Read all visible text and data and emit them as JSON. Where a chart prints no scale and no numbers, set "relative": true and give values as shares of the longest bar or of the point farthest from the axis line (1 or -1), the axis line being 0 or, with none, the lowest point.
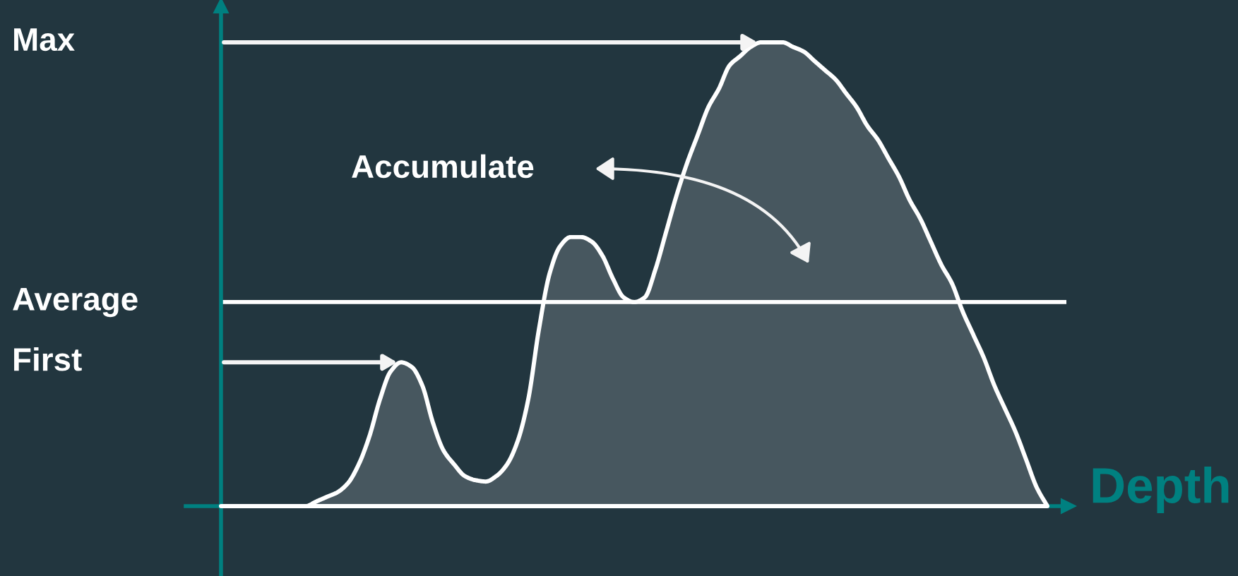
{
  "chart_data": {
    "type": "area",
    "relative": true,
    "xlabel": "Depth",
    "tick_labels": false,
    "categories": [
      null,
      null,
      null,
      null,
      null,
      null,
      null,
      null,
      null,
      null,
      null,
      null,
      null,
      null,
      null,
      null,
      null,
      null,
      null,
      null,
      null,
      null,
      null,
      null,
      null,
      null,
      null,
      null,
      null,
      null,
      null,
      null,
      null,
      null,
      null,
      null,
      null,
      null,
      null,
      null,
      null,
      null,
      null,
      null,
      null,
      null,
      null,
      null,
      null,
      null,
      null,
      null,
      null,
      null,
      null,
      null,
      null,
      null,
      null,
      null,
      null,
      null,
      null,
      null,
      null,
      null,
      null,
      null,
      null,
      null,
      null,
      null,
      null,
      null,
      null,
      null,
      null,
      null,
      null
    ],
    "color": "#ffffff",
    "values": [
      0,
      0,
      0,
      0,
      0,
      0,
      0,
      0,
      0,
      0.01,
      0.02,
      0.03,
      0.05,
      0.09,
      0.15,
      0.23,
      0.29,
      0.31,
      0.3,
      0.26,
      0.18,
      0.12,
      0.09,
      0.065,
      0.056,
      0.053,
      0.065,
      0.09,
      0.14,
      0.23,
      0.38,
      0.5,
      0.56,
      0.58,
      0.58,
      0.57,
      0.54,
      0.49,
      0.45,
      0.44,
      0.45,
      0.51,
      0.59,
      0.67,
      0.74,
      0.8,
      0.86,
      0.9,
      0.95,
      0.97,
      0.99,
      1,
      1,
      1,
      0.99,
      0.98,
      0.96,
      0.94,
      0.92,
      0.89,
      0.86,
      0.82,
      0.79,
      0.75,
      0.71,
      0.66,
      0.62,
      0.57,
      0.52,
      0.48,
      0.42,
      0.37,
      0.32,
      0.26,
      0.21,
      0.16,
      0.1,
      0.04,
      0
    ],
    "ref_lines": [
      {
        "axis": "y",
        "value": 0.44,
        "label": "Average",
        "color": "#ffffff"
      }
    ],
    "annotations": [
      "Max",
      "First",
      "Accumulate"
    ]
  }
}
